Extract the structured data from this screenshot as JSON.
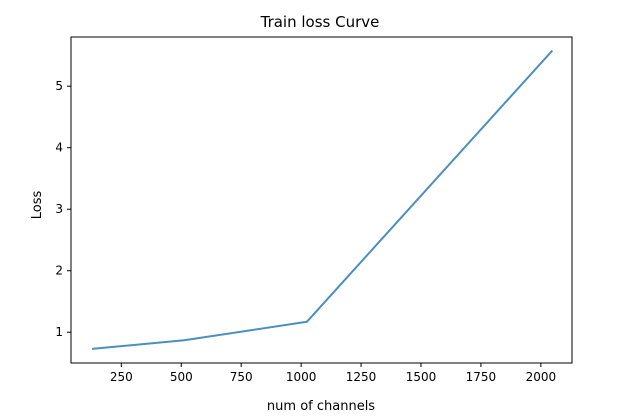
{
  "chart_data": {
    "type": "line",
    "title": "Train loss Curve",
    "xlabel": "num of channels",
    "ylabel": "Loss",
    "xlim": [
      40,
      2130
    ],
    "ylim": [
      0.5,
      5.8
    ],
    "xticks": [
      250,
      500,
      750,
      1000,
      1250,
      1500,
      1750,
      2000
    ],
    "yticks": [
      1,
      2,
      3,
      4,
      5
    ],
    "grid": false,
    "series": [
      {
        "x": [
          128,
          512,
          1024,
          2048
        ],
        "y": [
          0.73,
          0.87,
          1.17,
          5.58
        ],
        "color": "#4c8fbf"
      }
    ]
  }
}
